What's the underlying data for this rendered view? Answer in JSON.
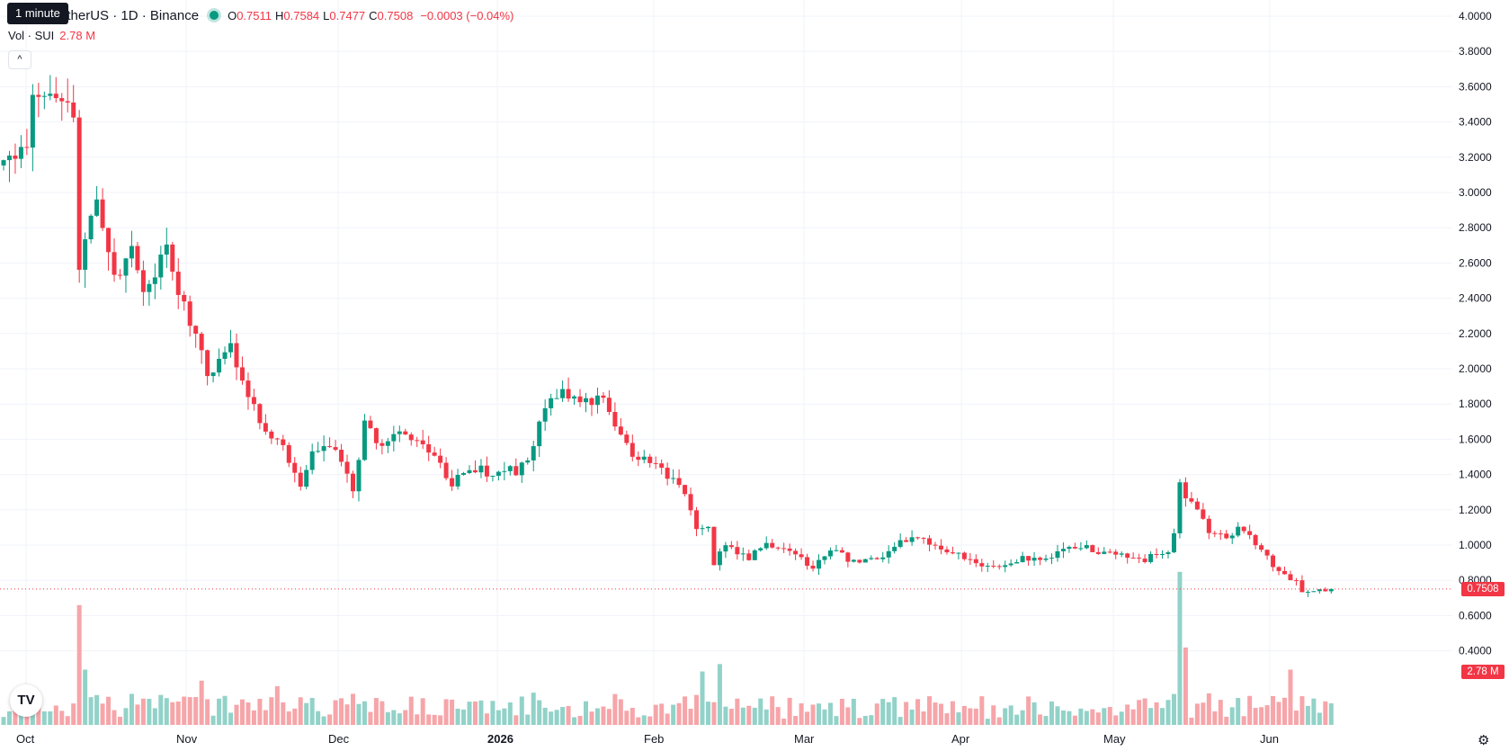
{
  "header": {
    "tooltip": "1 minute",
    "symbol": "etherUS · 1D · Binance",
    "open_label": "O",
    "open": "0.7511",
    "high_label": "H",
    "high": "0.7584",
    "low_label": "L",
    "low": "0.7477",
    "close_label": "C",
    "close": "0.7508",
    "change": "−0.0003 (−0.04%)"
  },
  "volume_legend": {
    "label": "Vol · SUI",
    "value": "2.78 M"
  },
  "last_price_tag": "0.7508",
  "last_volume_tag": "2.78 M",
  "icons": {
    "collapse": "chevron-up-icon",
    "logo": "tradingview-logo",
    "settings": "settings-icon"
  },
  "colors": {
    "up": "#089981",
    "down": "#f23645",
    "up_volume": "#92d2c8",
    "down_volume": "#f6a5a9",
    "grid": "#f0f3fa"
  },
  "chart_data": {
    "type": "candlestick",
    "price_axis": {
      "min": 0.2,
      "max": 4.0,
      "step": 0.2,
      "labels": [
        "4.0000",
        "3.8000",
        "3.6000",
        "3.4000",
        "3.2000",
        "3.0000",
        "2.8000",
        "2.6000",
        "2.4000",
        "2.2000",
        "2.0000",
        "1.8000",
        "1.6000",
        "1.4000",
        "1.2000",
        "1.0000",
        "0.8000",
        "0.6000",
        "0.4000"
      ]
    },
    "time_axis": [
      "Oct",
      "Nov",
      "Dec",
      "2026",
      "Feb",
      "Mar",
      "Apr",
      "May",
      "Jun"
    ],
    "last_price": 0.7508,
    "anchors": [
      [
        0,
        3.15
      ],
      [
        4,
        3.3
      ],
      [
        5,
        3.55
      ],
      [
        8,
        3.62
      ],
      [
        12,
        3.45
      ],
      [
        13,
        2.6
      ],
      [
        15,
        2.85
      ],
      [
        16,
        3.0
      ],
      [
        19,
        2.5
      ],
      [
        22,
        2.65
      ],
      [
        24,
        2.4
      ],
      [
        28,
        2.7
      ],
      [
        30,
        2.45
      ],
      [
        33,
        2.2
      ],
      [
        35,
        1.95
      ],
      [
        39,
        2.15
      ],
      [
        41,
        1.95
      ],
      [
        44,
        1.7
      ],
      [
        48,
        1.55
      ],
      [
        50,
        1.4
      ],
      [
        51,
        1.32
      ],
      [
        53,
        1.55
      ],
      [
        57,
        1.55
      ],
      [
        60,
        1.32
      ],
      [
        62,
        1.68
      ],
      [
        65,
        1.55
      ],
      [
        67,
        1.65
      ],
      [
        70,
        1.62
      ],
      [
        74,
        1.5
      ],
      [
        77,
        1.35
      ],
      [
        80,
        1.45
      ],
      [
        84,
        1.4
      ],
      [
        87,
        1.45
      ],
      [
        88,
        1.4
      ],
      [
        90,
        1.5
      ],
      [
        94,
        1.85
      ],
      [
        96,
        1.85
      ],
      [
        100,
        1.8
      ],
      [
        103,
        1.82
      ],
      [
        105,
        1.7
      ],
      [
        108,
        1.5
      ],
      [
        112,
        1.45
      ],
      [
        116,
        1.35
      ],
      [
        119,
        1.1
      ],
      [
        121,
        1.12
      ],
      [
        122,
        0.9
      ],
      [
        124,
        1.0
      ],
      [
        128,
        0.92
      ],
      [
        131,
        1.02
      ],
      [
        135,
        0.95
      ],
      [
        139,
        0.88
      ],
      [
        142,
        0.98
      ],
      [
        146,
        0.9
      ],
      [
        150,
        0.92
      ],
      [
        154,
        1.02
      ],
      [
        157,
        1.05
      ],
      [
        160,
        0.98
      ],
      [
        164,
        0.95
      ],
      [
        168,
        0.88
      ],
      [
        172,
        0.87
      ],
      [
        175,
        0.92
      ],
      [
        180,
        0.93
      ],
      [
        184,
        1.0
      ],
      [
        187,
        0.97
      ],
      [
        192,
        0.95
      ],
      [
        196,
        0.92
      ],
      [
        198,
        0.96
      ],
      [
        200,
        0.97
      ],
      [
        201,
        1.06
      ],
      [
        202,
        1.33
      ],
      [
        205,
        1.2
      ],
      [
        207,
        1.05
      ],
      [
        210,
        1.05
      ],
      [
        213,
        1.1
      ],
      [
        216,
        0.96
      ],
      [
        220,
        0.82
      ],
      [
        222,
        0.8
      ],
      [
        223,
        0.72
      ],
      [
        225,
        0.75
      ],
      [
        228,
        0.7508
      ]
    ],
    "n_days": 228,
    "volume_spikes": [
      [
        13,
        0.65
      ],
      [
        14,
        0.3
      ],
      [
        34,
        0.24
      ],
      [
        47,
        0.21
      ],
      [
        120,
        0.29
      ],
      [
        123,
        0.33
      ],
      [
        202,
        0.83
      ],
      [
        203,
        0.42
      ],
      [
        221,
        0.3
      ]
    ]
  }
}
